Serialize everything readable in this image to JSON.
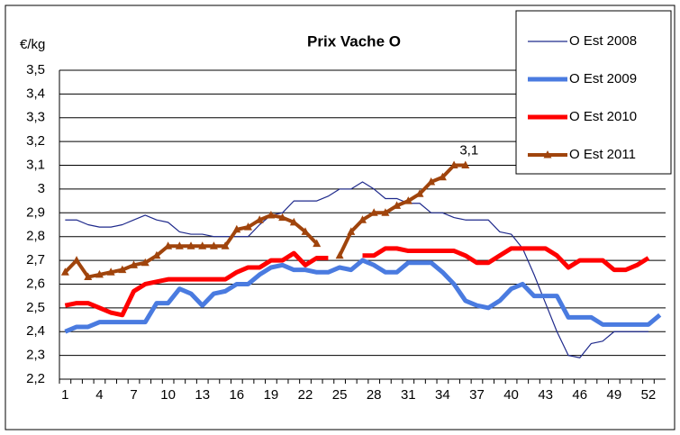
{
  "chart_data": {
    "type": "line",
    "title": "Prix Vache O",
    "y_label": "€/kg",
    "categories": [
      1,
      null,
      null,
      4,
      null,
      null,
      7,
      null,
      null,
      10,
      null,
      null,
      13,
      null,
      null,
      16,
      null,
      null,
      19,
      null,
      null,
      22,
      null,
      null,
      25,
      null,
      null,
      28,
      null,
      null,
      31,
      null,
      null,
      34,
      null,
      null,
      37,
      null,
      null,
      40,
      null,
      null,
      43,
      null,
      null,
      46,
      null,
      null,
      49,
      null,
      null,
      52,
      null
    ],
    "series": [
      {
        "name": "O Est 2008",
        "color": "#1f2a8c",
        "values": [
          2.87,
          2.87,
          2.85,
          2.84,
          2.84,
          2.85,
          2.87,
          2.89,
          2.87,
          2.86,
          2.82,
          2.81,
          2.81,
          2.8,
          2.8,
          2.8,
          2.8,
          2.85,
          2.89,
          2.9,
          2.95,
          2.95,
          2.95,
          2.97,
          3.0,
          3.0,
          3.03,
          3.0,
          2.96,
          2.96,
          2.94,
          2.94,
          2.9,
          2.9,
          2.88,
          2.87,
          2.87,
          2.87,
          2.82,
          2.81,
          2.75,
          2.64,
          2.52,
          2.4,
          2.3,
          2.29,
          2.35,
          2.36,
          2.4,
          2.4,
          2.4,
          2.4,
          null
        ]
      },
      {
        "name": "O Est 2009",
        "color": "#4a7be0",
        "values": [
          2.4,
          2.42,
          2.42,
          2.44,
          2.44,
          2.44,
          2.44,
          2.44,
          2.52,
          2.52,
          2.58,
          2.56,
          2.51,
          2.56,
          2.57,
          2.6,
          2.6,
          2.64,
          2.67,
          2.68,
          2.66,
          2.66,
          2.65,
          2.65,
          2.67,
          2.66,
          2.7,
          2.68,
          2.65,
          2.65,
          2.69,
          2.69,
          2.69,
          2.65,
          2.6,
          2.53,
          2.51,
          2.5,
          2.53,
          2.58,
          2.6,
          2.55,
          2.55,
          2.55,
          2.46,
          2.46,
          2.46,
          2.43,
          2.43,
          2.43,
          2.43,
          2.43,
          2.47
        ]
      },
      {
        "name": "O Est 2010",
        "color": "#ff0000",
        "values": [
          2.51,
          2.52,
          2.52,
          2.5,
          2.48,
          2.47,
          2.57,
          2.6,
          2.61,
          2.62,
          2.62,
          2.62,
          2.62,
          2.62,
          2.62,
          2.65,
          2.67,
          2.67,
          2.7,
          2.7,
          2.73,
          2.68,
          2.71,
          2.71,
          null,
          null,
          2.72,
          2.72,
          2.75,
          2.75,
          2.74,
          2.74,
          2.74,
          2.74,
          2.74,
          2.72,
          2.69,
          2.69,
          2.72,
          2.75,
          2.75,
          2.75,
          2.75,
          2.72,
          2.67,
          2.7,
          2.7,
          2.7,
          2.66,
          2.66,
          2.68,
          2.71,
          null
        ]
      },
      {
        "name": "O Est 2011",
        "color": "#a0440c",
        "marker": "triangle",
        "values": [
          2.65,
          2.7,
          2.63,
          2.64,
          2.65,
          2.66,
          2.68,
          2.69,
          2.72,
          2.76,
          2.76,
          2.76,
          2.76,
          2.76,
          2.76,
          2.83,
          2.84,
          2.87,
          2.89,
          2.88,
          2.86,
          2.82,
          2.77,
          null,
          2.72,
          2.82,
          2.87,
          2.9,
          2.9,
          2.93,
          2.95,
          2.98,
          3.03,
          3.05,
          3.1,
          3.1,
          null,
          null,
          null,
          null,
          null,
          null,
          null,
          null,
          null,
          null,
          null,
          null,
          null,
          null,
          null,
          null,
          null
        ],
        "value_labels": [
          null,
          null,
          null,
          null,
          null,
          null,
          null,
          null,
          null,
          null,
          null,
          null,
          null,
          null,
          null,
          null,
          null,
          null,
          null,
          null,
          null,
          null,
          null,
          null,
          null,
          null,
          null,
          null,
          null,
          null,
          null,
          null,
          null,
          null,
          null,
          "3,1",
          null,
          null,
          null,
          null,
          null,
          null,
          null,
          null,
          null,
          null,
          null,
          null,
          null,
          null,
          null,
          null,
          null
        ]
      }
    ],
    "ylim": [
      2.2,
      3.5
    ],
    "yticks": [
      {
        "value": 2.2,
        "label": "2,2"
      },
      {
        "value": 2.3,
        "label": "2,3"
      },
      {
        "value": 2.4,
        "label": "2,4"
      },
      {
        "value": 2.5,
        "label": "2,5"
      },
      {
        "value": 2.6,
        "label": "2,6"
      },
      {
        "value": 2.7,
        "label": "2,7"
      },
      {
        "value": 2.8,
        "label": "2,8"
      },
      {
        "value": 2.9,
        "label": "2,9"
      },
      3,
      {
        "value": 3.1,
        "label": "3,1"
      },
      {
        "value": 3.2,
        "label": "3,2"
      },
      {
        "value": 3.3,
        "label": "3,3"
      },
      {
        "value": 3.4,
        "label": "3,4"
      },
      {
        "value": 3.5,
        "label": "3,5"
      }
    ],
    "grid": true,
    "legend": "top-right"
  }
}
